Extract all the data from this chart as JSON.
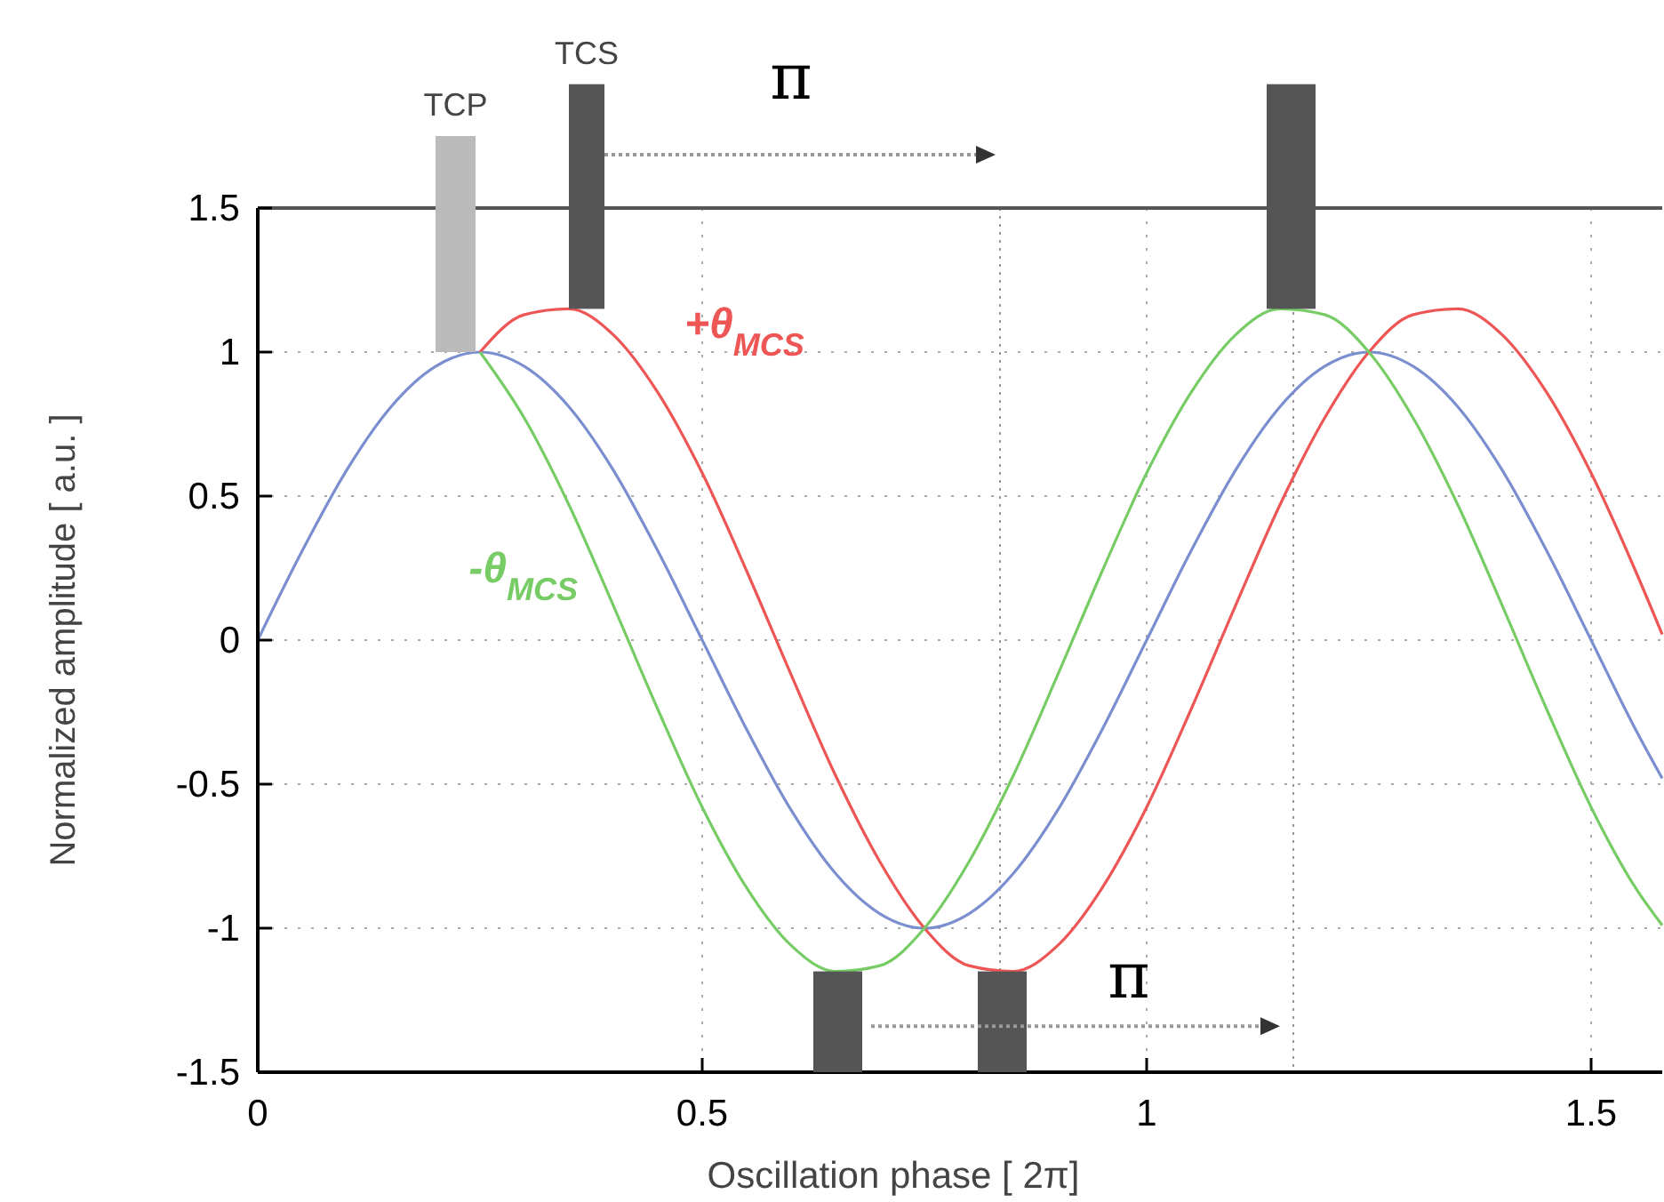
{
  "chart_data": {
    "type": "line",
    "xlabel": "Oscillation phase [ 2π]",
    "ylabel": "Normalized amplitude [ a.u. ]",
    "xlim": [
      0,
      1.58
    ],
    "ylim": [
      -1.5,
      1.5
    ],
    "xticks": [
      0,
      0.5,
      1,
      1.5
    ],
    "yticks": [
      -1.5,
      -1,
      -0.5,
      0,
      0.5,
      1,
      1.5
    ],
    "grid": true,
    "marker": "none",
    "line_style": "solid",
    "series": [
      {
        "color": "#7b8fd0",
        "x": [
          0,
          0.05,
          0.1,
          0.15,
          0.2,
          0.25,
          0.3,
          0.35,
          0.4,
          0.45,
          0.5,
          0.55,
          0.6,
          0.65,
          0.7,
          0.75,
          0.8,
          0.85,
          0.9,
          0.95,
          1.0,
          1.05,
          1.1,
          1.15,
          1.2,
          1.25,
          1.3,
          1.35,
          1.4,
          1.45,
          1.5,
          1.55,
          1.58
        ],
        "values": [
          0,
          0.31,
          0.59,
          0.81,
          0.95,
          1,
          0.95,
          0.81,
          0.59,
          0.31,
          0,
          -0.31,
          -0.59,
          -0.81,
          -0.95,
          -1,
          -0.95,
          -0.81,
          -0.59,
          -0.31,
          0,
          0.31,
          0.59,
          0.81,
          0.95,
          1,
          0.95,
          0.81,
          0.59,
          0.31,
          0,
          -0.31,
          -0.48
        ]
      },
      {
        "name": "+θ$_{MCS}$",
        "color": "#ee5555",
        "x": [
          0.25,
          0.3,
          0.35,
          0.4,
          0.45,
          0.5,
          0.55,
          0.6,
          0.65,
          0.7,
          0.75,
          0.8,
          0.85,
          0.9,
          0.95,
          1.0,
          1.05,
          1.1,
          1.15,
          1.2,
          1.25,
          1.3,
          1.35,
          1.4,
          1.45,
          1.5,
          1.55,
          1.58
        ],
        "values": [
          1,
          1.13,
          1.15,
          1.06,
          0.86,
          0.58,
          0.24,
          -0.12,
          -0.47,
          -0.77,
          -1,
          -1.13,
          -1.15,
          -1.06,
          -0.86,
          -0.58,
          -0.24,
          0.12,
          0.47,
          0.77,
          1,
          1.13,
          1.15,
          1.06,
          0.86,
          0.58,
          0.24,
          0.02
        ]
      },
      {
        "name": "-θ$_{MCS}$",
        "color": "#77cc66",
        "x": [
          0.25,
          0.3,
          0.35,
          0.4,
          0.45,
          0.5,
          0.55,
          0.6,
          0.65,
          0.7,
          0.75,
          0.8,
          0.85,
          0.9,
          0.95,
          1.0,
          1.05,
          1.1,
          1.15,
          1.2,
          1.25,
          1.3,
          1.35,
          1.4,
          1.45,
          1.5,
          1.55,
          1.58
        ],
        "values": [
          1,
          0.77,
          0.47,
          0.12,
          -0.24,
          -0.58,
          -0.86,
          -1.06,
          -1.15,
          -1.13,
          -1,
          -0.77,
          -0.47,
          -0.12,
          0.24,
          0.58,
          0.86,
          1.06,
          1.15,
          1.13,
          1,
          0.77,
          0.47,
          0.12,
          -0.24,
          -0.58,
          -0.86,
          -0.99
        ]
      }
    ],
    "ref_lines": [
      {
        "axis": "x",
        "value": 0.835,
        "line_style": "dotted",
        "color": "#999999"
      },
      {
        "axis": "x",
        "value": 1.165,
        "line_style": "dotted",
        "color": "#999999"
      }
    ],
    "annotations": [
      "TCP",
      "TCS",
      "π",
      "π"
    ]
  }
}
